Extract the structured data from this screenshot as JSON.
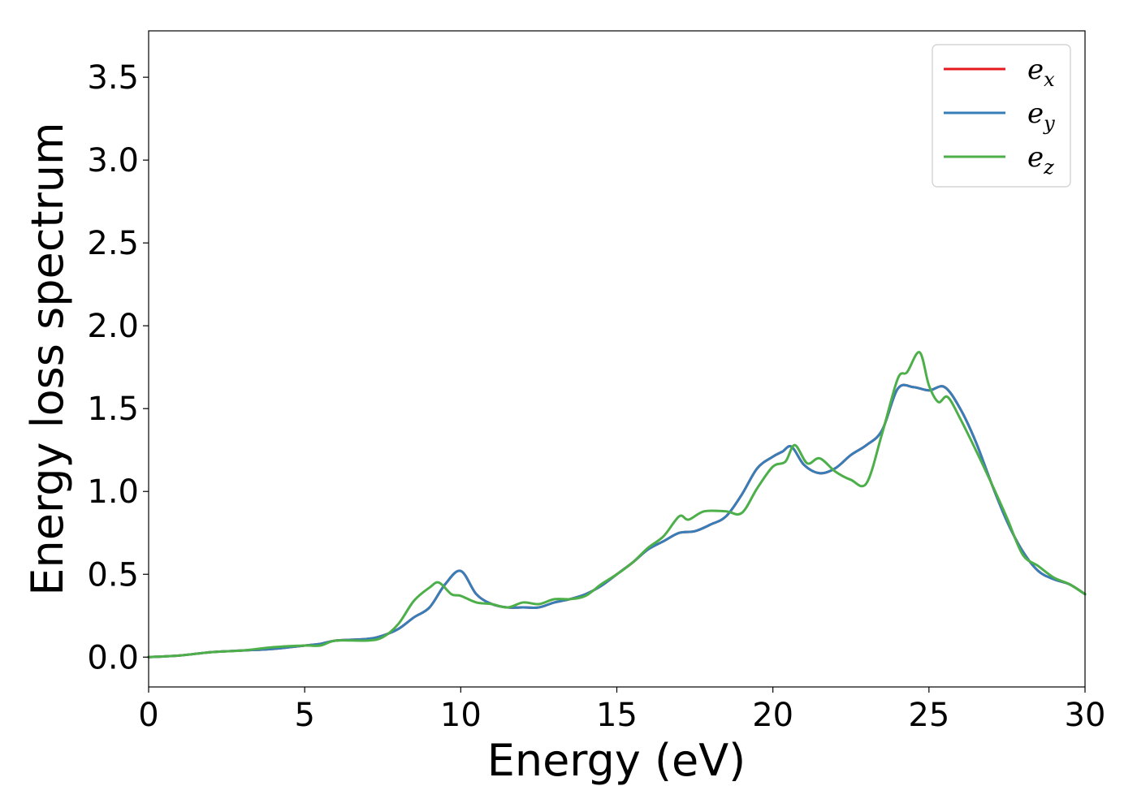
{
  "chart_data": {
    "type": "line",
    "title": "",
    "xlabel": "Energy (eV)",
    "ylabel": "Energy loss spectrum",
    "xlim": [
      0,
      30
    ],
    "ylim": [
      -0.18,
      3.78
    ],
    "xticks": [
      0,
      5,
      10,
      15,
      20,
      25,
      30
    ],
    "xtick_labels": [
      "0",
      "5",
      "10",
      "15",
      "20",
      "25",
      "30"
    ],
    "yticks": [
      0,
      0.5,
      1,
      1.5,
      2,
      2.5,
      3,
      3.5
    ],
    "ytick_labels": [
      "0.0",
      "0.5",
      "1.0",
      "1.5",
      "2.0",
      "2.5",
      "3.0",
      "3.5"
    ],
    "grid": false,
    "legend_position": "top-right",
    "series": [
      {
        "name": "e_x",
        "label_base": "e",
        "label_sub": "x",
        "color": "#e41a1c",
        "x": [
          0,
          1,
          2,
          3,
          4,
          5,
          5.5,
          6,
          7,
          7.5,
          8,
          8.5,
          9,
          9.5,
          10,
          10.5,
          11,
          11.5,
          12,
          12.5,
          13,
          13.5,
          14,
          14.5,
          15,
          15.5,
          16,
          16.5,
          17,
          17.5,
          18,
          18.5,
          19,
          19.5,
          20,
          20.3,
          20.6,
          21,
          21.5,
          22,
          22.5,
          23,
          23.5,
          24,
          24.5,
          25,
          25.5,
          26,
          26.5,
          27,
          27.5,
          28,
          28.5,
          29,
          29.5,
          30
        ],
        "y": [
          0,
          0.01,
          0.03,
          0.04,
          0.05,
          0.07,
          0.08,
          0.1,
          0.11,
          0.13,
          0.17,
          0.24,
          0.3,
          0.44,
          0.52,
          0.38,
          0.32,
          0.3,
          0.3,
          0.3,
          0.33,
          0.35,
          0.38,
          0.43,
          0.5,
          0.57,
          0.65,
          0.7,
          0.75,
          0.76,
          0.8,
          0.85,
          0.98,
          1.14,
          1.21,
          1.24,
          1.27,
          1.16,
          1.11,
          1.14,
          1.22,
          1.28,
          1.37,
          1.62,
          1.63,
          1.61,
          1.63,
          1.5,
          1.3,
          1.05,
          0.82,
          0.64,
          0.52,
          0.47,
          0.44,
          0.38
        ]
      },
      {
        "name": "e_y",
        "label_base": "e",
        "label_sub": "y",
        "color": "#377eb8",
        "x": [
          0,
          1,
          2,
          3,
          4,
          5,
          5.5,
          6,
          7,
          7.5,
          8,
          8.5,
          9,
          9.5,
          10,
          10.5,
          11,
          11.5,
          12,
          12.5,
          13,
          13.5,
          14,
          14.5,
          15,
          15.5,
          16,
          16.5,
          17,
          17.5,
          18,
          18.5,
          19,
          19.5,
          20,
          20.3,
          20.6,
          21,
          21.5,
          22,
          22.5,
          23,
          23.5,
          24,
          24.5,
          25,
          25.5,
          26,
          26.5,
          27,
          27.5,
          28,
          28.5,
          29,
          29.5,
          30
        ],
        "y": [
          0,
          0.01,
          0.03,
          0.04,
          0.05,
          0.07,
          0.08,
          0.1,
          0.11,
          0.13,
          0.17,
          0.24,
          0.3,
          0.44,
          0.52,
          0.38,
          0.32,
          0.3,
          0.3,
          0.3,
          0.33,
          0.35,
          0.38,
          0.43,
          0.5,
          0.57,
          0.65,
          0.7,
          0.75,
          0.76,
          0.8,
          0.85,
          0.98,
          1.14,
          1.21,
          1.24,
          1.27,
          1.16,
          1.11,
          1.14,
          1.22,
          1.28,
          1.37,
          1.62,
          1.63,
          1.61,
          1.63,
          1.5,
          1.3,
          1.05,
          0.82,
          0.64,
          0.52,
          0.47,
          0.44,
          0.38
        ]
      },
      {
        "name": "e_z",
        "label_base": "e",
        "label_sub": "z",
        "color": "#4daf4a",
        "x": [
          0,
          1,
          2,
          3,
          4,
          5,
          5.5,
          6,
          7,
          7.5,
          8,
          8.5,
          9,
          9.3,
          9.7,
          10,
          10.5,
          11,
          11.5,
          12,
          12.5,
          13,
          13.5,
          14,
          14.5,
          15,
          15.5,
          16,
          16.5,
          17,
          17.3,
          17.8,
          18.5,
          19,
          19.5,
          20,
          20.4,
          20.7,
          21.1,
          21.5,
          22,
          22.5,
          23,
          23.5,
          24,
          24.3,
          24.7,
          25,
          25.3,
          25.6,
          26,
          26.5,
          27,
          27.5,
          28,
          28.5,
          29,
          29.5,
          30
        ],
        "y": [
          0,
          0.01,
          0.03,
          0.04,
          0.06,
          0.07,
          0.07,
          0.1,
          0.1,
          0.12,
          0.2,
          0.34,
          0.42,
          0.45,
          0.38,
          0.37,
          0.33,
          0.32,
          0.3,
          0.33,
          0.32,
          0.35,
          0.35,
          0.37,
          0.44,
          0.5,
          0.57,
          0.66,
          0.73,
          0.85,
          0.83,
          0.88,
          0.88,
          0.87,
          1.02,
          1.15,
          1.18,
          1.28,
          1.17,
          1.2,
          1.12,
          1.07,
          1.05,
          1.35,
          1.68,
          1.72,
          1.84,
          1.64,
          1.54,
          1.57,
          1.44,
          1.25,
          1.05,
          0.84,
          0.62,
          0.55,
          0.48,
          0.44,
          0.38
        ]
      }
    ]
  }
}
